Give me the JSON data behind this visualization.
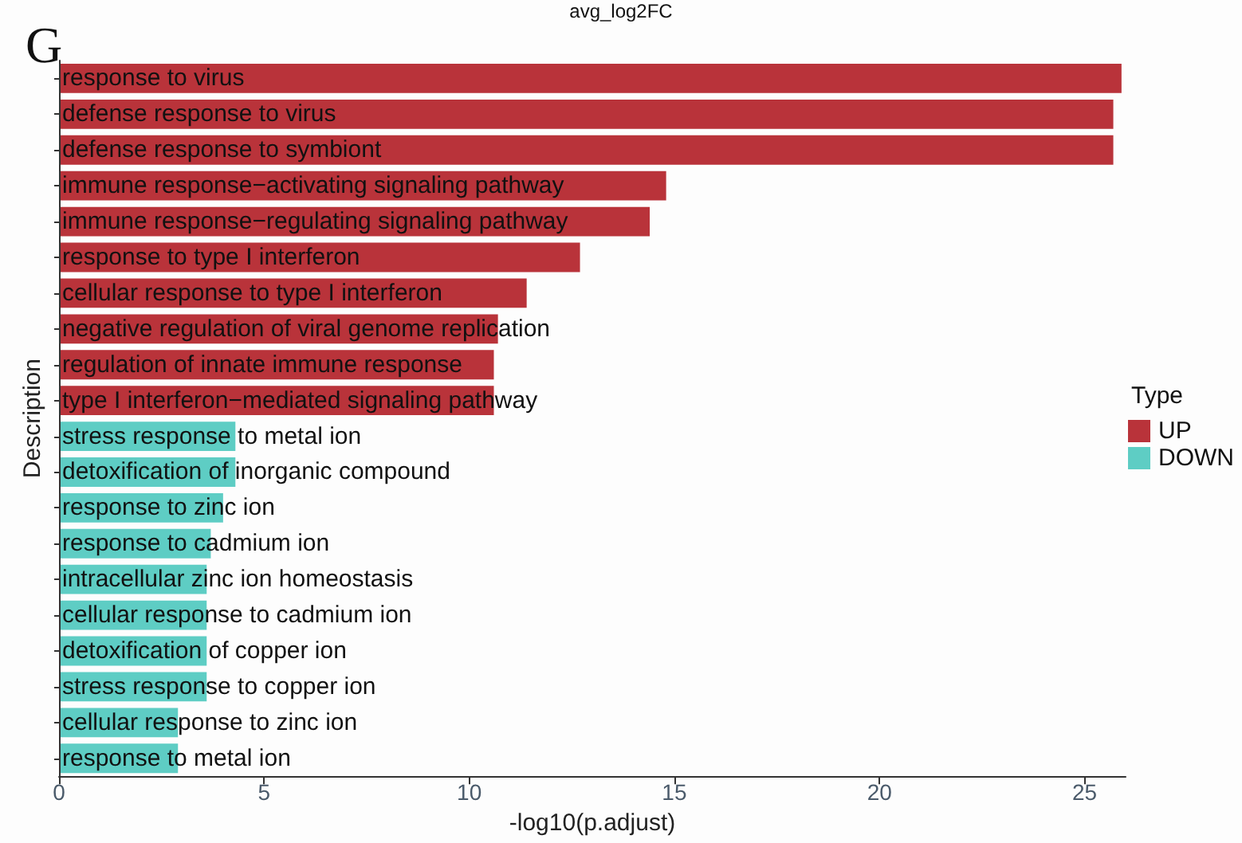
{
  "chart_data": {
    "type": "bar",
    "orientation": "horizontal",
    "title": "avg_log2FC",
    "xlabel": "-log10(p.adjust)",
    "ylabel": "Description",
    "legend_title": "Type",
    "annotations": [
      "G"
    ],
    "categories": [
      "response to virus",
      "defense response to virus",
      "defense response to symbiont",
      "immune response−activating signaling pathway",
      "immune response−regulating signaling pathway",
      "response to type I interferon",
      "cellular response to type I interferon",
      "negative regulation of viral genome replication",
      "regulation of innate immune response",
      "type I interferon−mediated signaling pathway",
      "stress response to metal ion",
      "detoxification of inorganic compound",
      "response to zinc ion",
      "response to cadmium ion",
      "intracellular zinc ion homeostasis",
      "cellular response to cadmium ion",
      "detoxification of copper ion",
      "stress response to copper ion",
      "cellular response to zinc ion",
      "response to metal ion"
    ],
    "series": [
      {
        "name": "UP",
        "color": "#b9333a",
        "values": [
          25.9,
          25.7,
          25.7,
          14.8,
          14.4,
          12.7,
          11.4,
          10.7,
          10.6,
          10.6,
          null,
          null,
          null,
          null,
          null,
          null,
          null,
          null,
          null,
          null
        ]
      },
      {
        "name": "DOWN",
        "color": "#5ecdc4",
        "values": [
          null,
          null,
          null,
          null,
          null,
          null,
          null,
          null,
          null,
          null,
          4.3,
          4.3,
          4.0,
          3.7,
          3.6,
          3.6,
          3.6,
          3.6,
          2.9,
          2.9
        ]
      }
    ],
    "xlim": [
      0,
      26
    ],
    "xticks": [
      0,
      5,
      10,
      15,
      20,
      25
    ],
    "grid": false,
    "legend": "right"
  }
}
